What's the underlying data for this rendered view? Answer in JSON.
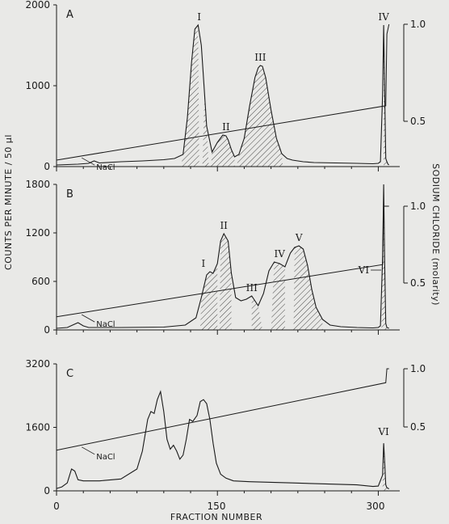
{
  "figure": {
    "y_axis_title": "COUNTS PER MINUTE / 50 µl",
    "right_axis_title": "SODIUM CHLORIDE (molarity)",
    "x_axis_title": "FRACTION NUMBER",
    "x_ticks": [
      "0",
      "150",
      "300"
    ]
  },
  "colors": {
    "ink": "#1a1a1a",
    "paper": "#e9e9e7"
  },
  "chart_data": [
    {
      "panel": "A",
      "type": "line",
      "xlim": [
        0,
        320
      ],
      "ylim": [
        0,
        2000
      ],
      "y_ticks": [
        0,
        1000,
        2000
      ],
      "y2lim": [
        0.0,
        1.0
      ],
      "y2_ticks": [
        "0.5",
        "1.0"
      ],
      "x": [
        0,
        10,
        20,
        30,
        35,
        40,
        60,
        80,
        100,
        110,
        118,
        122,
        126,
        129,
        132,
        135,
        138,
        140,
        145,
        150,
        155,
        158,
        160,
        163,
        166,
        170,
        175,
        180,
        185,
        188,
        190,
        192,
        195,
        200,
        205,
        210,
        215,
        220,
        230,
        240,
        260,
        280,
        295,
        300,
        302,
        304,
        305,
        306,
        307,
        308,
        309,
        310
      ],
      "values": [
        20,
        25,
        30,
        40,
        70,
        45,
        60,
        70,
        85,
        100,
        150,
        600,
        1300,
        1700,
        1750,
        1500,
        900,
        500,
        180,
        300,
        390,
        380,
        330,
        210,
        120,
        150,
        350,
        750,
        1100,
        1220,
        1250,
        1240,
        1100,
        700,
        350,
        160,
        100,
        80,
        60,
        50,
        45,
        40,
        35,
        40,
        60,
        900,
        1750,
        900,
        100,
        60,
        30,
        20
      ],
      "nacl_x": [
        0,
        307,
        308,
        310
      ],
      "nacl": [
        0.3,
        0.58,
        0.95,
        1.0
      ],
      "nacl_label": "NaCl",
      "hatched_ranges": [
        [
          116,
          133
        ],
        [
          136,
          142
        ],
        [
          144,
          166
        ],
        [
          168,
          211
        ],
        [
          305,
          308
        ]
      ],
      "peaks": [
        {
          "label": "I",
          "x": 133,
          "y": 1750
        },
        {
          "label": "II",
          "x": 158,
          "y": 390
        },
        {
          "label": "III",
          "x": 190,
          "y": 1250
        },
        {
          "label": "IV",
          "x": 305,
          "y": 1750
        }
      ]
    },
    {
      "panel": "B",
      "type": "line",
      "xlim": [
        0,
        320
      ],
      "ylim": [
        0,
        1800
      ],
      "y_ticks": [
        0,
        600,
        1200,
        1800
      ],
      "y2lim": [
        0.0,
        1.0
      ],
      "y2_ticks": [
        "0.5",
        "1.0"
      ],
      "x": [
        0,
        10,
        15,
        20,
        25,
        30,
        60,
        100,
        120,
        130,
        135,
        140,
        143,
        146,
        150,
        153,
        156,
        160,
        163,
        167,
        172,
        177,
        182,
        188,
        193,
        198,
        203,
        208,
        213,
        218,
        222,
        226,
        230,
        234,
        238,
        242,
        248,
        255,
        265,
        280,
        295,
        300,
        302,
        304,
        305,
        306,
        307,
        308,
        310
      ],
      "values": [
        20,
        30,
        60,
        90,
        50,
        30,
        30,
        35,
        60,
        150,
        400,
        680,
        720,
        700,
        820,
        1100,
        1190,
        1100,
        700,
        400,
        360,
        380,
        420,
        300,
        450,
        730,
        840,
        820,
        780,
        950,
        1020,
        1040,
        1000,
        800,
        500,
        280,
        130,
        60,
        40,
        30,
        25,
        30,
        50,
        900,
        1800,
        800,
        80,
        30,
        20
      ],
      "nacl_x": [
        0,
        304,
        305,
        310
      ],
      "nacl": [
        0.28,
        0.62,
        1.0,
        1.0
      ],
      "nacl_label": "NaCl",
      "hatched_ranges": [
        [
          134,
          150
        ],
        [
          152,
          163
        ],
        [
          182,
          192
        ],
        [
          200,
          213
        ],
        [
          221,
          248
        ],
        [
          303,
          308
        ]
      ],
      "peaks": [
        {
          "label": "I",
          "x": 143,
          "y": 720
        },
        {
          "label": "II",
          "x": 156,
          "y": 1190
        },
        {
          "label": "III",
          "x": 182,
          "y": 420
        },
        {
          "label": "IV",
          "x": 208,
          "y": 840
        },
        {
          "label": "V",
          "x": 226,
          "y": 1040
        },
        {
          "label": "VI",
          "x": 305,
          "y": 1800
        }
      ]
    },
    {
      "panel": "C",
      "type": "line",
      "xlim": [
        0,
        320
      ],
      "ylim": [
        0,
        3200
      ],
      "y_ticks": [
        0,
        1600,
        3200
      ],
      "y2lim": [
        0.0,
        1.0
      ],
      "y2_ticks": [
        "0.5",
        "1.0"
      ],
      "x": [
        0,
        5,
        10,
        14,
        17,
        20,
        25,
        40,
        60,
        75,
        80,
        85,
        88,
        91,
        94,
        97,
        100,
        103,
        106,
        109,
        112,
        115,
        118,
        121,
        124,
        127,
        131,
        134,
        137,
        140,
        143,
        146,
        149,
        153,
        158,
        165,
        180,
        220,
        280,
        295,
        300,
        304,
        305,
        306,
        307,
        308,
        310
      ],
      "values": [
        60,
        100,
        200,
        550,
        500,
        280,
        250,
        250,
        300,
        550,
        1000,
        1800,
        2000,
        1950,
        2300,
        2500,
        2000,
        1300,
        1050,
        1150,
        1000,
        800,
        900,
        1300,
        1800,
        1750,
        1900,
        2250,
        2300,
        2200,
        1800,
        1200,
        700,
        420,
        320,
        250,
        230,
        200,
        150,
        110,
        120,
        400,
        1200,
        700,
        150,
        80,
        50
      ],
      "nacl_x": [
        0,
        307,
        308,
        310
      ],
      "nacl": [
        0.3,
        0.88,
        1.0,
        1.0
      ],
      "nacl_label": "NaCl",
      "hatched_ranges": [
        [
          304,
          308
        ]
      ],
      "peaks": [
        {
          "label": "VI",
          "x": 305,
          "y": 1200
        }
      ]
    }
  ]
}
